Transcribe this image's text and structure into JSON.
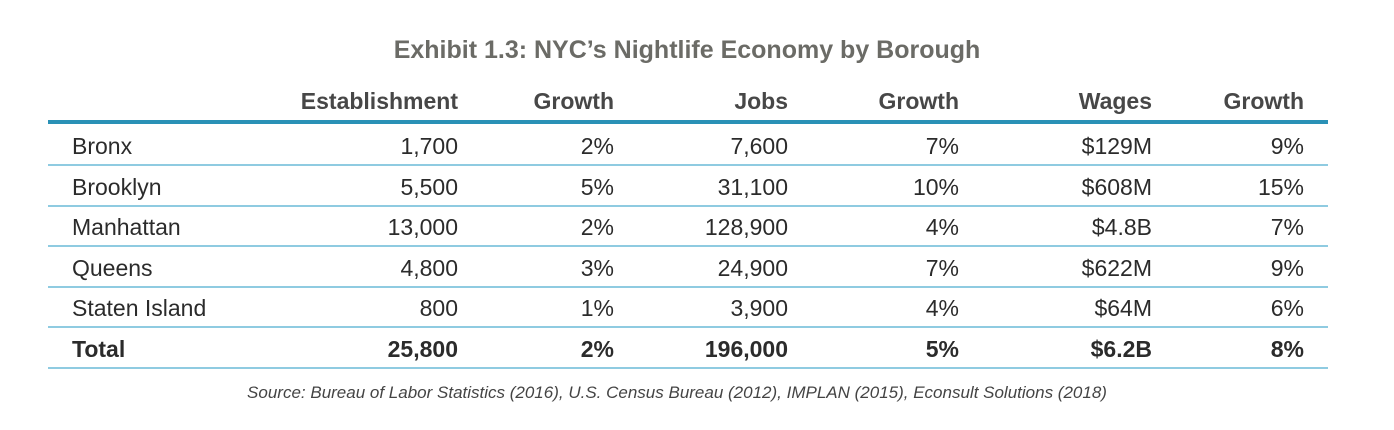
{
  "chart_data": {
    "type": "table",
    "title": "Exhibit 1.3: NYC’s Nightlife Economy by Borough",
    "columns": [
      "",
      "Establishment",
      "Growth",
      "Jobs",
      "Growth",
      "Wages",
      "Growth"
    ],
    "rows": [
      {
        "borough": "Bronx",
        "cells": [
          "1,700",
          "2%",
          "7,600",
          "7%",
          "$129M",
          "9%"
        ]
      },
      {
        "borough": "Brooklyn",
        "cells": [
          "5,500",
          "5%",
          "31,100",
          "10%",
          "$608M",
          "15%"
        ]
      },
      {
        "borough": "Manhattan",
        "cells": [
          "13,000",
          "2%",
          "128,900",
          "4%",
          "$4.8B",
          "7%"
        ]
      },
      {
        "borough": "Queens",
        "cells": [
          "4,800",
          "3%",
          "24,900",
          "7%",
          "$622M",
          "9%"
        ]
      },
      {
        "borough": "Staten Island",
        "cells": [
          "800",
          "1%",
          "3,900",
          "4%",
          "$64M",
          "6%"
        ]
      }
    ],
    "total": {
      "borough": "Total",
      "cells": [
        "25,800",
        "2%",
        "196,000",
        "5%",
        "$6.2B",
        "8%"
      ]
    },
    "source": "Source: Bureau of Labor Statistics (2016), U.S. Census Bureau (2012), IMPLAN (2015), Econsult Solutions (2018)"
  },
  "colors": {
    "rule": "#2a91b6",
    "separator": "#8fcbe1",
    "title": "#6b6b66"
  }
}
